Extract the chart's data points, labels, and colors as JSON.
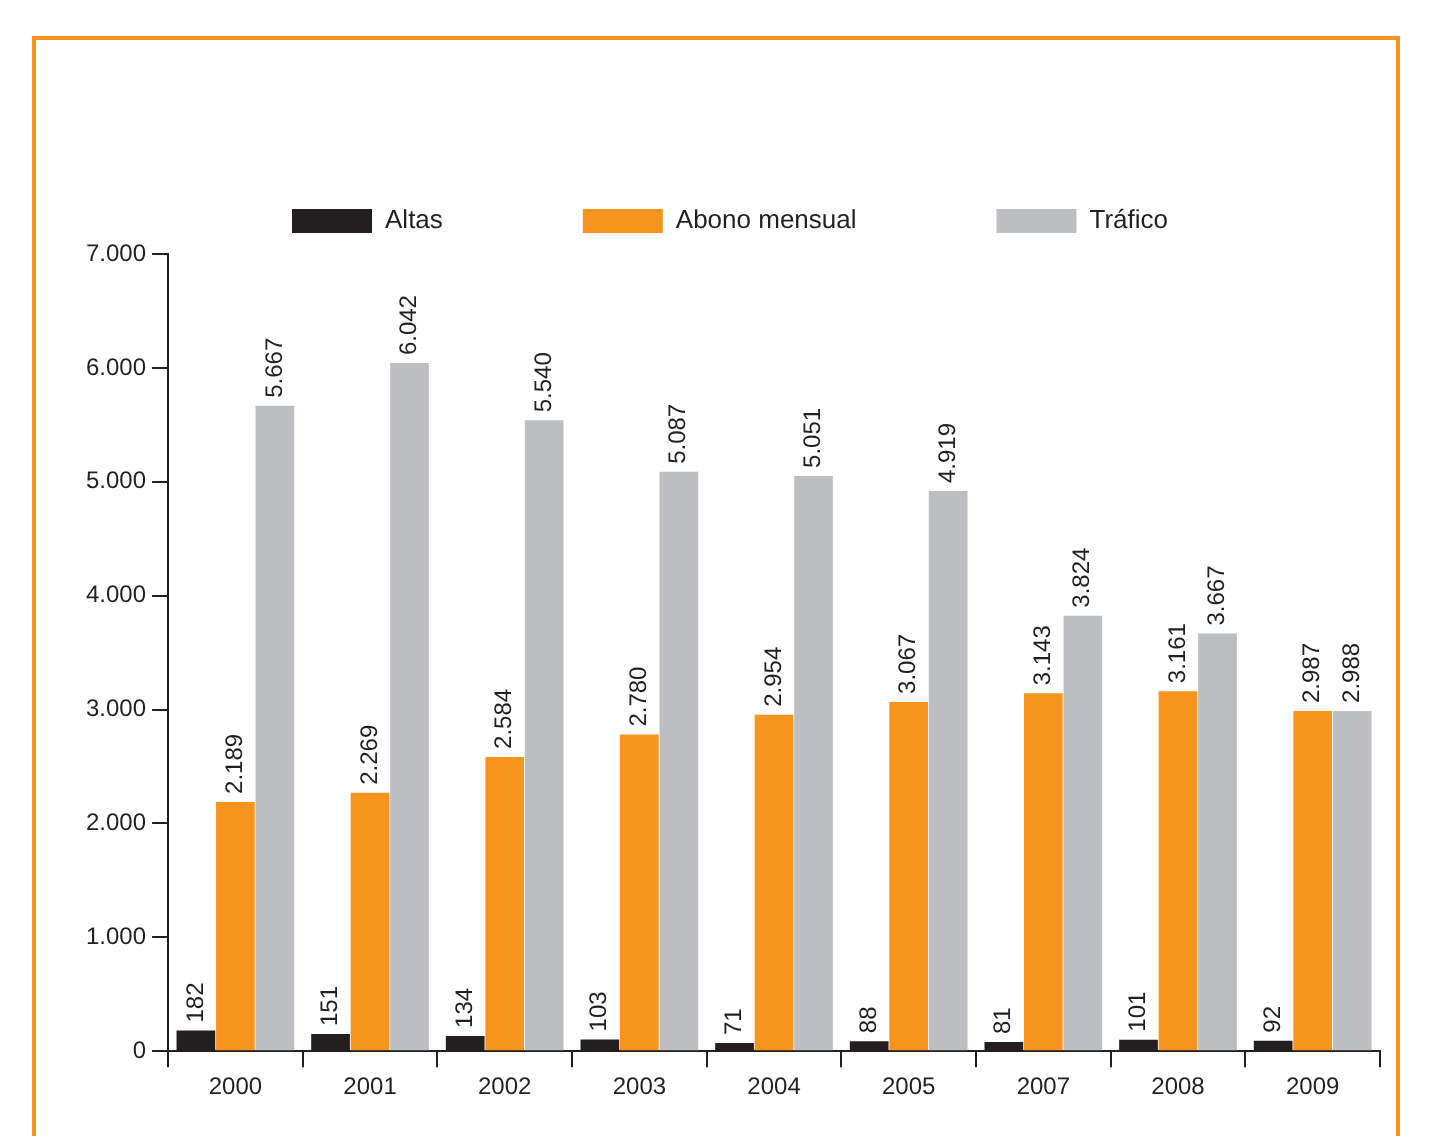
{
  "chart_data": {
    "type": "bar",
    "categories": [
      "2000",
      "2001",
      "2002",
      "2003",
      "2004",
      "2005",
      "2007",
      "2008",
      "2009"
    ],
    "series": [
      {
        "name": "Altas",
        "color": "#231f20",
        "values": [
          182,
          151,
          134,
          103,
          71,
          88,
          81,
          101,
          92
        ],
        "value_labels": [
          "182",
          "151",
          "134",
          "103",
          "71",
          "88",
          "81",
          "101",
          "92"
        ]
      },
      {
        "name": "Abono mensual",
        "color": "#f7941d",
        "values": [
          2189,
          2269,
          2584,
          2780,
          2954,
          3067,
          3143,
          3161,
          2987
        ],
        "value_labels": [
          "2.189",
          "2.269",
          "2.584",
          "2.780",
          "2.954",
          "3.067",
          "3.143",
          "3.161",
          "2.987"
        ]
      },
      {
        "name": "Tráfico",
        "color": "#bcbec0",
        "values": [
          5667,
          6042,
          5540,
          5087,
          5051,
          4919,
          3824,
          3667,
          2988
        ],
        "value_labels": [
          "5.667",
          "6.042",
          "5.540",
          "5.087",
          "5.051",
          "4.919",
          "3.824",
          "3.667",
          "2.988"
        ]
      }
    ],
    "ylim": [
      0,
      7000
    ],
    "yticks": [
      0,
      {
        "value": 1000,
        "label": "1.000"
      },
      {
        "value": 2000,
        "label": "2.000"
      },
      {
        "value": 3000,
        "label": "3.000"
      },
      {
        "value": 4000,
        "label": "4.000"
      },
      {
        "value": 5000,
        "label": "5.000"
      },
      {
        "value": 6000,
        "label": "6.000"
      },
      {
        "value": 7000,
        "label": "7.000"
      }
    ],
    "grid": false,
    "legend": "top"
  }
}
